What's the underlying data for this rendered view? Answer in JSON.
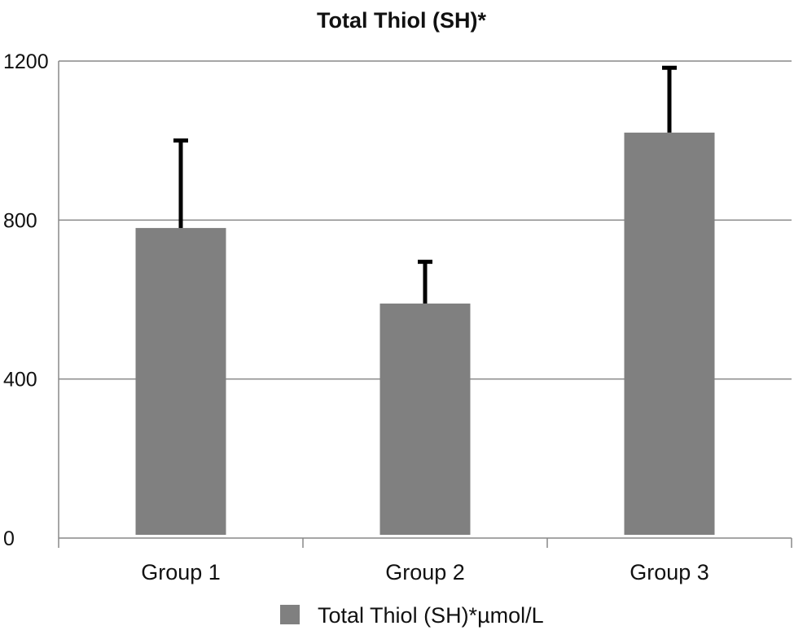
{
  "chart_data": {
    "type": "bar",
    "title": "Total Thiol (SH)*",
    "xlabel": "",
    "ylabel": "",
    "categories": [
      "Group 1",
      "Group 2",
      "Group 3"
    ],
    "series": [
      {
        "name": "Total Thiol (SH)*µmol/L",
        "values": [
          780,
          590,
          1020
        ],
        "error_upper": [
          1000,
          695,
          1183
        ]
      }
    ],
    "ylim": [
      0,
      1200
    ],
    "yticks": [
      "0",
      "400",
      "800",
      "1200"
    ],
    "grid": true,
    "legend_position": "bottom",
    "colors": {
      "bar": "#808080",
      "error_bar": "#000000",
      "grid": "#888888"
    }
  }
}
